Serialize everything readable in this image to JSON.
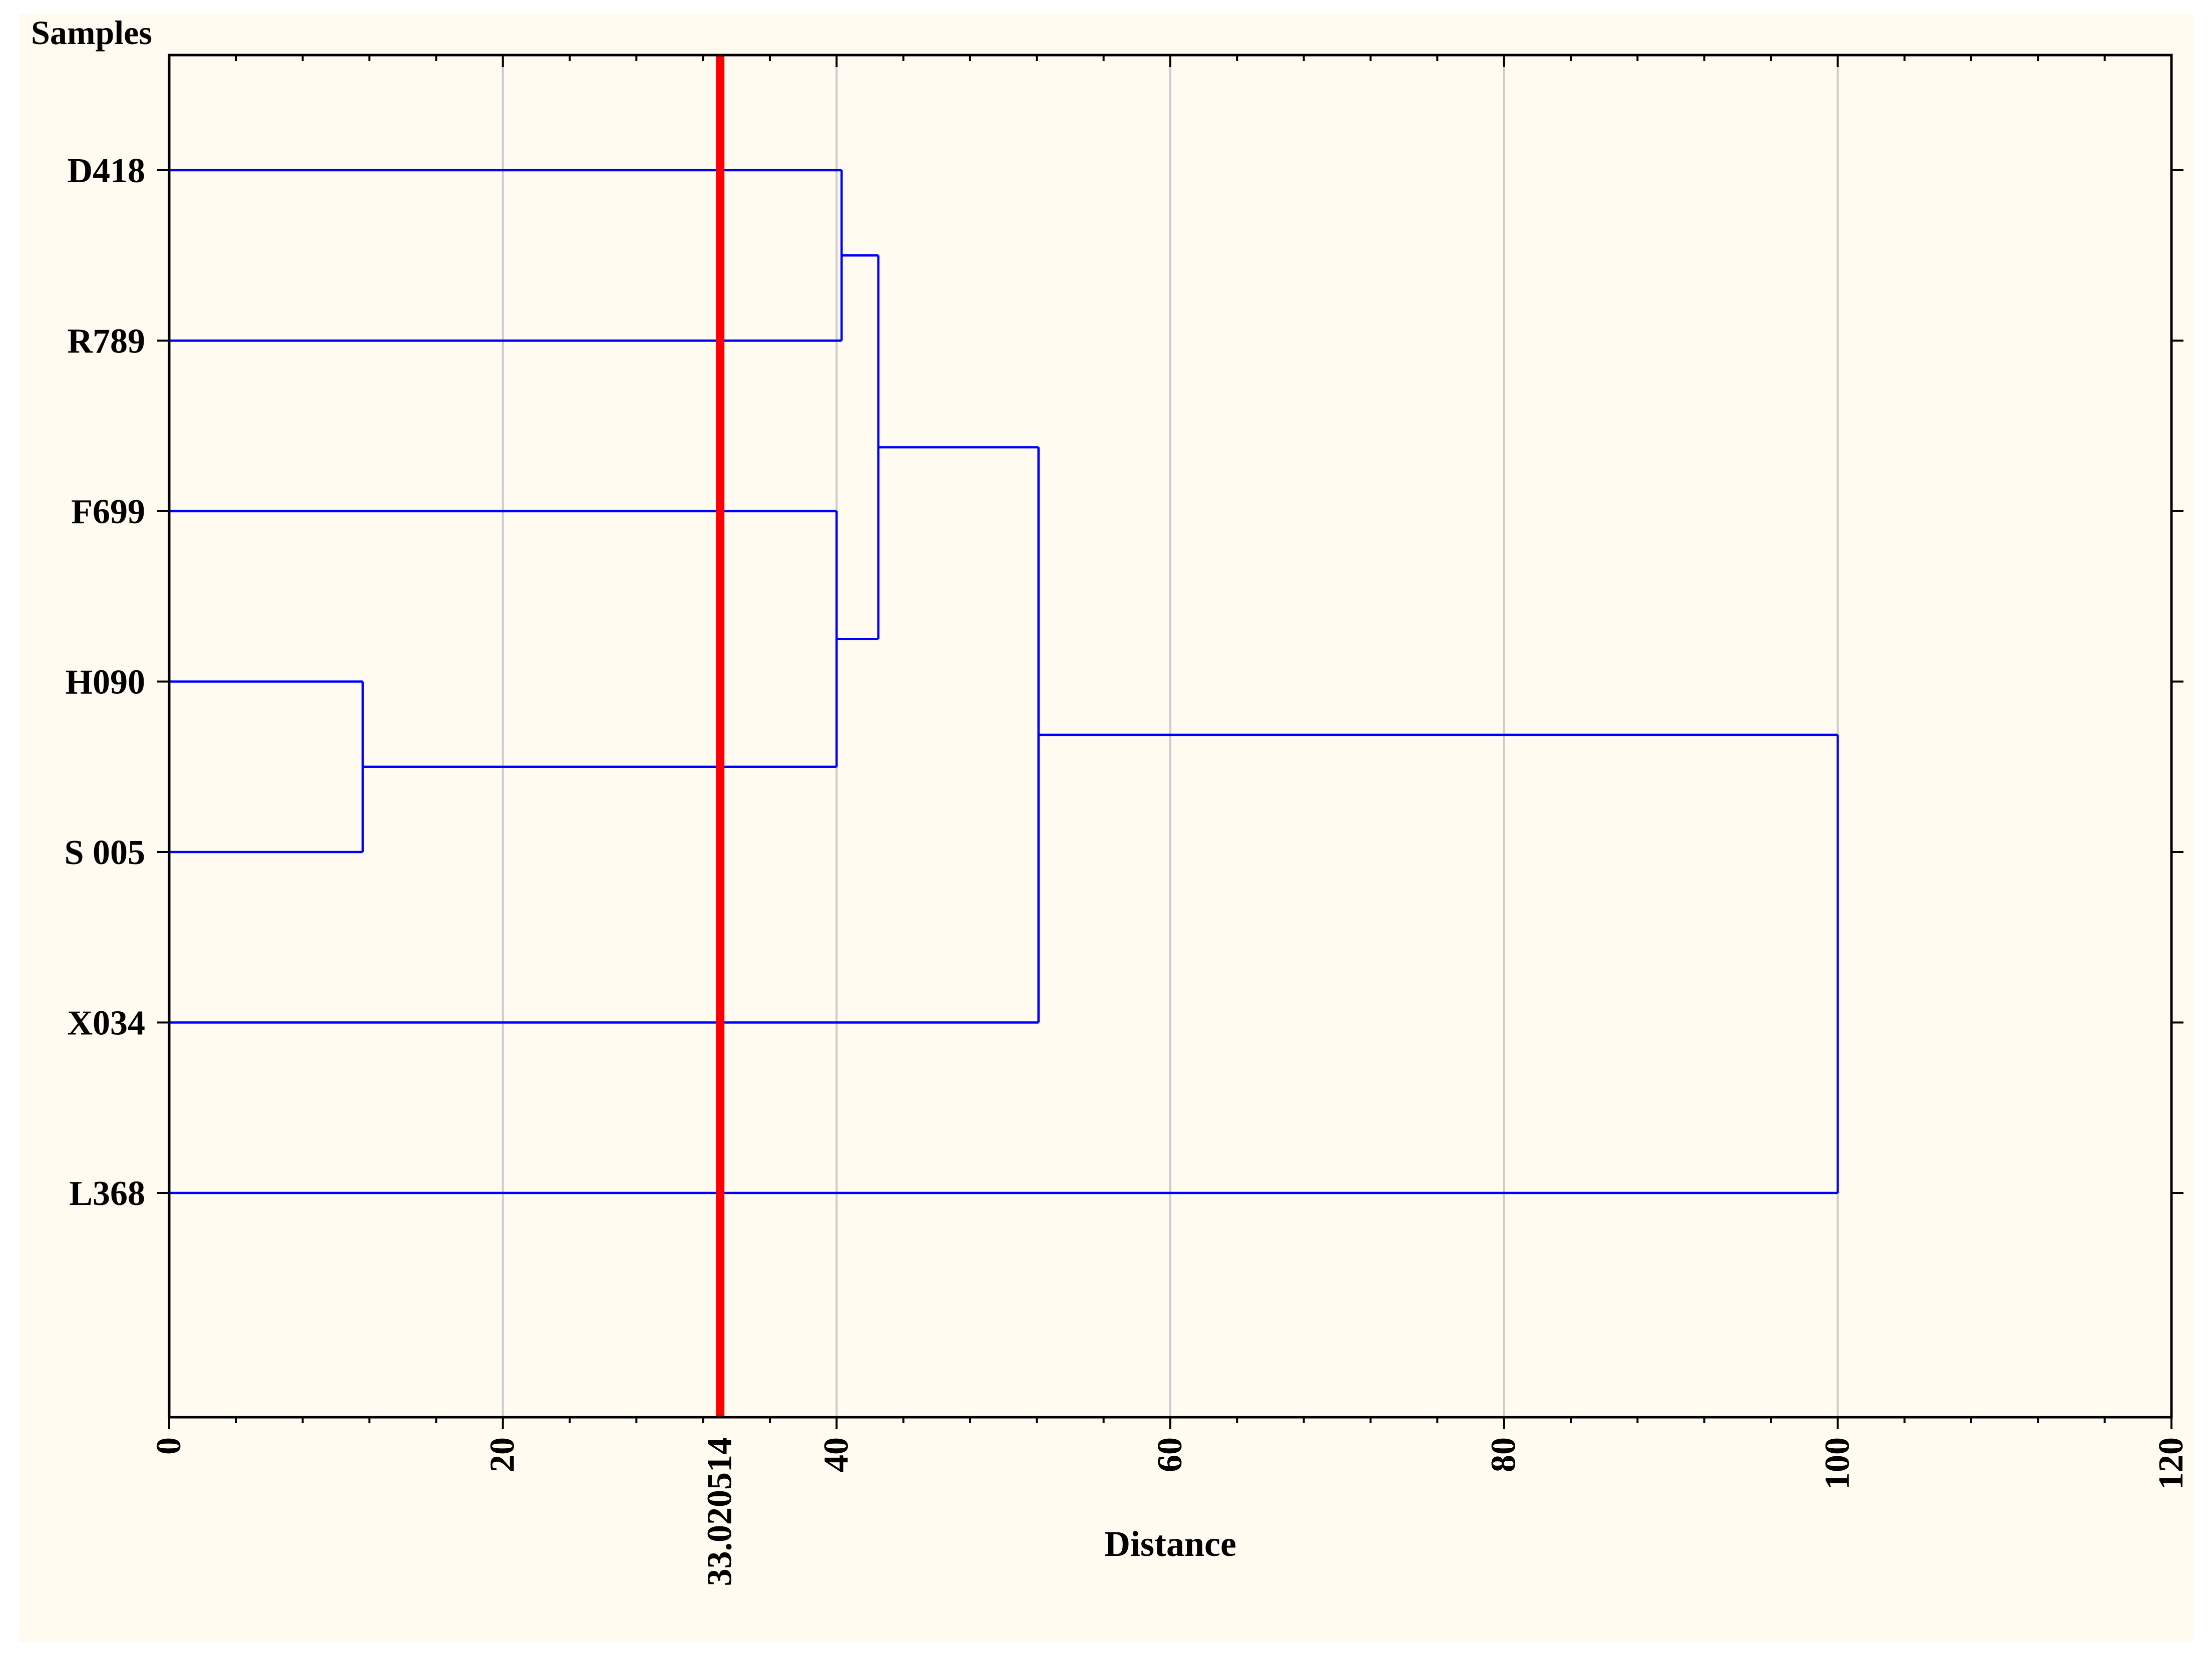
{
  "chart_data": {
    "type": "dendrogram",
    "orientation": "horizontal",
    "ylabel": "Samples",
    "xlabel": "Distance",
    "xlim": [
      0,
      120
    ],
    "x_ticks": [
      0,
      20,
      40,
      60,
      80,
      100,
      120
    ],
    "grid": true,
    "samples": [
      "D418",
      "R789",
      "F699",
      "H090",
      "S 005",
      "X034",
      "L368"
    ],
    "merges": [
      {
        "left": "H090",
        "right": "S 005",
        "distance": 11.6
      },
      {
        "left": "D418",
        "right": "R789",
        "distance": 40.3
      },
      {
        "left": "F699",
        "right": "H090 + S 005",
        "distance": 40.0
      },
      {
        "left": "D418 + R789",
        "right": "F699 + H090 + S 005",
        "distance": 42.5
      },
      {
        "left": "D418 + R789 + F699 + H090 + S 005",
        "right": "X034",
        "distance": 52.1
      },
      {
        "left": "D418 + R789 + F699 + H090 + S 005 + X034",
        "right": "L368",
        "distance": 100.0
      }
    ],
    "cutoff": {
      "value": 33.020514,
      "label": "33.020514"
    }
  },
  "colors": {
    "link": "#0000ff",
    "cutoff": "#ff0000",
    "grid": "#cccccc",
    "axis": "#000000",
    "background": "#fffbf0"
  }
}
